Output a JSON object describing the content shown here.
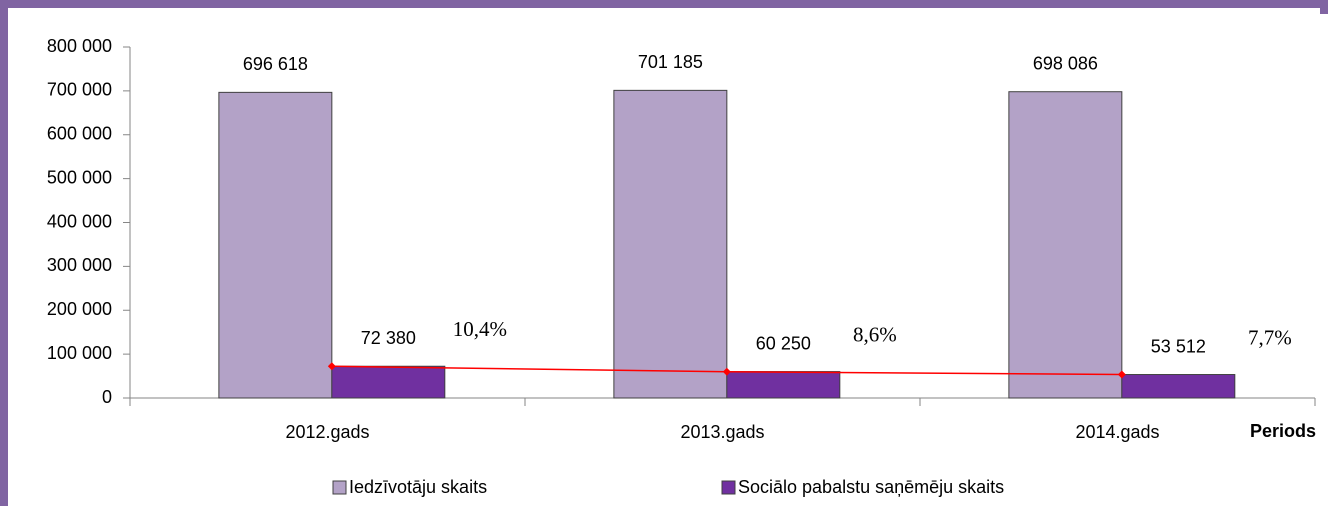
{
  "chart_data": {
    "type": "bar",
    "categories": [
      "2012.gads",
      "2013.gads",
      "2014.gads"
    ],
    "x_label": "Periods",
    "series": [
      {
        "name": "Iedzīvotāju skaits",
        "color": "#b3a2c7",
        "values": [
          696618,
          701185,
          698086
        ],
        "value_labels": [
          "696 618",
          "701 185",
          "698 086"
        ]
      },
      {
        "name": "Sociālo pabalstu saņēmēju skaits",
        "color": "#7030a0",
        "values": [
          72380,
          60250,
          53512
        ],
        "value_labels": [
          "72 380",
          "60 250",
          "53 512"
        ]
      },
      {
        "type": "line",
        "axis": "y2",
        "color": "#ff0000",
        "values": [
          10.4,
          8.6,
          7.7
        ],
        "value_labels": [
          "10,4%",
          "8,6%",
          "7,7%"
        ]
      }
    ],
    "ylim": [
      0,
      800000
    ],
    "yticks": [
      0,
      {
        "value": 100000,
        "label": "100 000"
      },
      {
        "value": 200000,
        "label": "200 000"
      },
      {
        "value": 300000,
        "label": "300 000"
      },
      {
        "value": 400000,
        "label": "400 000"
      },
      {
        "value": 500000,
        "label": "500 000"
      },
      {
        "value": 600000,
        "label": "600 000"
      },
      {
        "value": 700000,
        "label": "700 000"
      },
      {
        "value": 800000,
        "label": "800 000"
      }
    ],
    "y2lim": [
      0,
      115
    ],
    "legend": "bottom"
  }
}
